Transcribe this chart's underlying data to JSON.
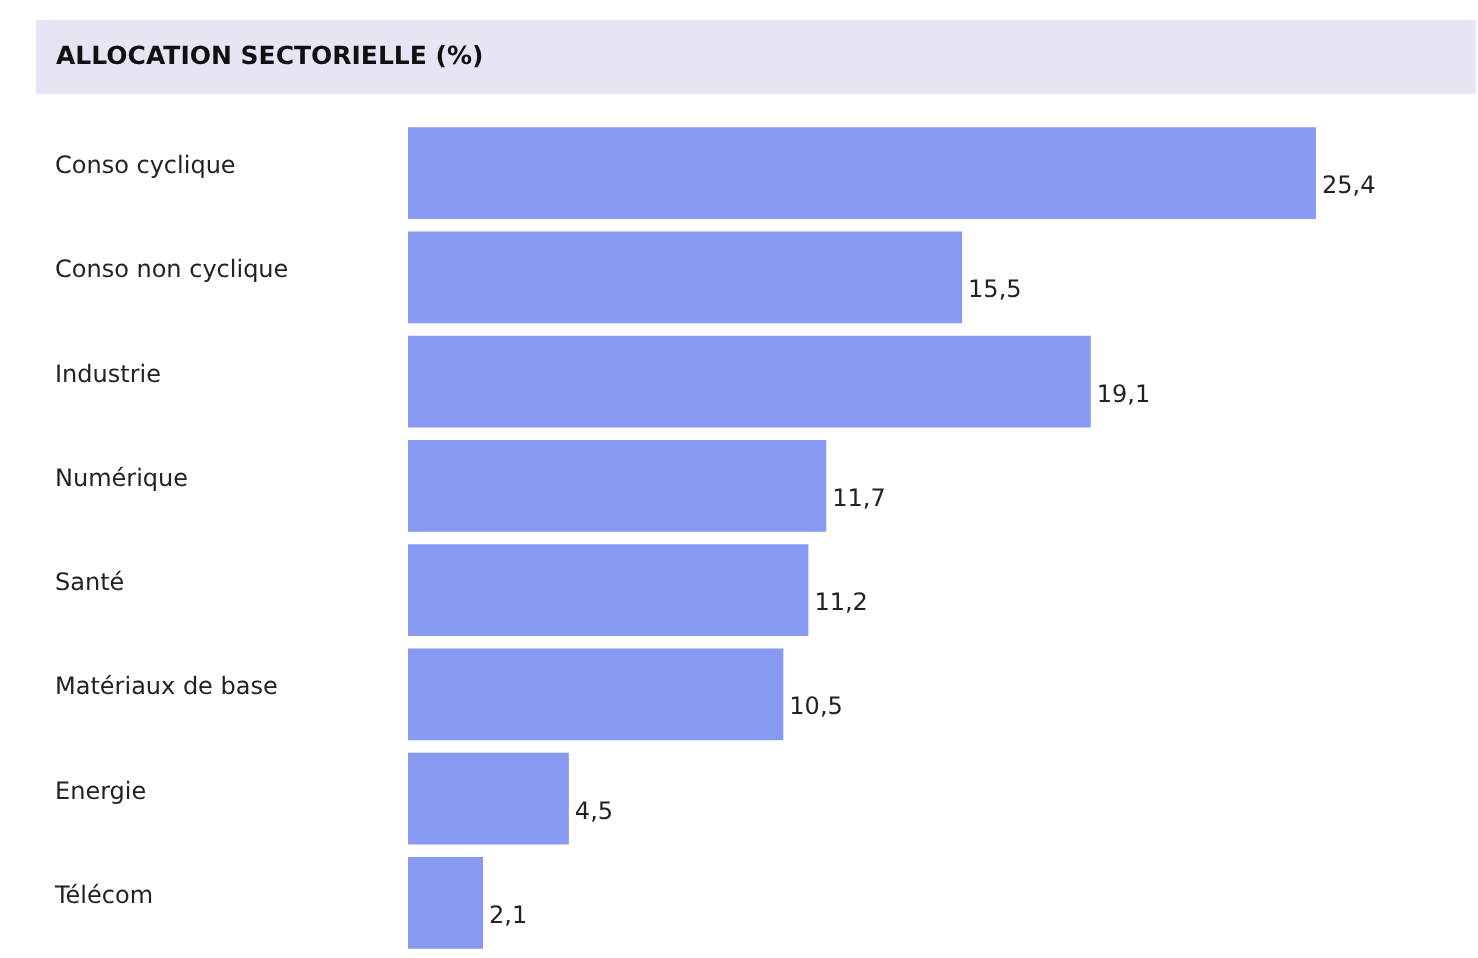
{
  "chart_data": {
    "type": "bar",
    "orientation": "horizontal",
    "title": "ALLOCATION SECTORIELLE (%)",
    "categories": [
      "Conso cyclique",
      "Conso non cyclique",
      "Industrie",
      "Numérique",
      "Santé",
      "Matériaux de base",
      "Energie",
      "Télécom"
    ],
    "values": [
      25.4,
      15.5,
      19.1,
      11.7,
      11.2,
      10.5,
      4.5,
      2.1
    ],
    "value_labels": [
      "25,4",
      "15,5",
      "19,1",
      "11,7",
      "11,2",
      "10,5",
      "4,5",
      "2,1"
    ],
    "color": "#8899f2"
  }
}
